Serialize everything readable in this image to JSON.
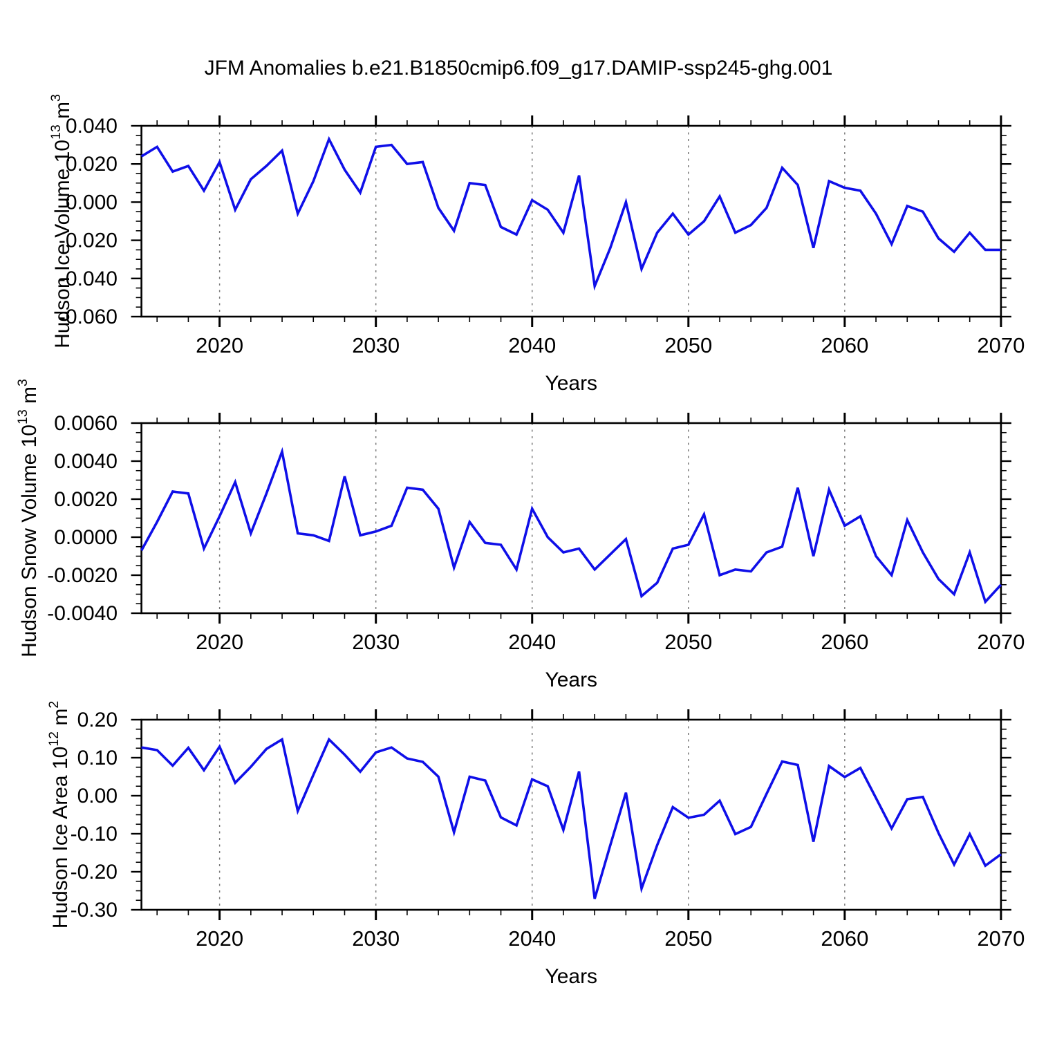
{
  "title": "JFM Anomalies b.e21.B1850cmip6.f09_g17.DAMIP-ssp245-ghg.001",
  "colors": {
    "line": "#0f0fe8",
    "gridline": "#7a7a7a",
    "axis": "#000000",
    "background": "#ffffff"
  },
  "chart_data": [
    {
      "type": "line",
      "id": "hudson-ice-volume",
      "ylabel_text": "Hudson Ice Volume 10^13 m^3",
      "ylabel_parts": [
        {
          "t": "Hudson Ice Volume 10"
        },
        {
          "s": "13"
        },
        {
          "t": " m"
        },
        {
          "s": "3"
        }
      ],
      "xlabel": "Years",
      "x_start": 2015,
      "x_end": 2070,
      "ylim": [
        -0.06,
        0.04
      ],
      "y_major_step": 0.02,
      "y_minor_step": 0.005,
      "y_decimals": 3,
      "x_minor_step": 2,
      "x_tick_labels": [
        "2020",
        "2030",
        "2040",
        "2050",
        "2060",
        "2070"
      ],
      "gridlines_x": [
        2020,
        2030,
        2040,
        2050,
        2060
      ],
      "grid": "vertical-dashed-only",
      "values": [
        0.024,
        0.029,
        0.016,
        0.019,
        0.006,
        0.021,
        -0.004,
        0.012,
        0.019,
        0.027,
        -0.006,
        0.011,
        0.033,
        0.017,
        0.005,
        0.029,
        0.03,
        0.02,
        0.021,
        -0.003,
        -0.015,
        0.01,
        0.009,
        -0.013,
        -0.017,
        0.001,
        -0.004,
        -0.016,
        0.014,
        -0.044,
        -0.024,
        0.0,
        -0.035,
        -0.016,
        -0.006,
        -0.017,
        -0.01,
        0.003,
        -0.016,
        -0.012,
        -0.003,
        0.018,
        0.009,
        -0.024,
        0.011,
        0.0075,
        0.006,
        -0.006,
        -0.022,
        -0.002,
        -0.005,
        -0.019,
        -0.026,
        -0.016,
        -0.025,
        -0.025
      ]
    },
    {
      "type": "line",
      "id": "hudson-snow-volume",
      "ylabel_text": "Hudson Snow Volume 10^13 m^3",
      "ylabel_parts": [
        {
          "t": "Hudson Snow Volume 10"
        },
        {
          "s": "13"
        },
        {
          "t": " m"
        },
        {
          "s": "3"
        }
      ],
      "xlabel": "Years",
      "x_start": 2015,
      "x_end": 2070,
      "ylim": [
        -0.004,
        0.006
      ],
      "y_major_step": 0.002,
      "y_minor_step": 0.0005,
      "y_decimals": 4,
      "x_minor_step": 2,
      "x_tick_labels": [
        "2020",
        "2030",
        "2040",
        "2050",
        "2060",
        "2070"
      ],
      "gridlines_x": [
        2020,
        2030,
        2040,
        2050,
        2060
      ],
      "grid": "vertical-dashed-only",
      "values": [
        -0.0007,
        0.0008,
        0.0024,
        0.0023,
        -0.0006,
        0.0011,
        0.0029,
        0.0002,
        0.0023,
        0.0045,
        0.0002,
        0.0001,
        -0.0002,
        0.0032,
        0.0001,
        0.0003,
        0.0006,
        0.0026,
        0.0025,
        0.0015,
        -0.0016,
        0.0008,
        -0.0003,
        -0.0004,
        -0.0017,
        0.0015,
        0.0,
        -0.0008,
        -0.0006,
        -0.0017,
        -0.0009,
        -0.0001,
        -0.0031,
        -0.0024,
        -0.0006,
        -0.0004,
        0.0012,
        -0.002,
        -0.0017,
        -0.0018,
        -0.0008,
        -0.0005,
        0.0026,
        -0.001,
        0.0025,
        0.0006,
        0.0011,
        -0.001,
        -0.002,
        0.0009,
        -0.0008,
        -0.0022,
        -0.003,
        -0.0008,
        -0.0034,
        -0.0025
      ]
    },
    {
      "type": "line",
      "id": "hudson-ice-area",
      "ylabel_text": "Hudson Ice Area 10^12 m^2",
      "ylabel_parts": [
        {
          "t": "Hudson Ice Area 10"
        },
        {
          "s": "12"
        },
        {
          "t": " m"
        },
        {
          "s": "2"
        }
      ],
      "xlabel": "Years",
      "x_start": 2015,
      "x_end": 2070,
      "ylim": [
        -0.3,
        0.2
      ],
      "y_major_step": 0.1,
      "y_minor_step": 0.025,
      "y_decimals": 2,
      "x_minor_step": 2,
      "x_tick_labels": [
        "2020",
        "2030",
        "2040",
        "2050",
        "2060",
        "2070"
      ],
      "gridlines_x": [
        2020,
        2030,
        2040,
        2050,
        2060
      ],
      "grid": "vertical-dashed-only",
      "values": [
        0.127,
        0.12,
        0.079,
        0.126,
        0.067,
        0.129,
        0.034,
        0.076,
        0.123,
        0.148,
        -0.04,
        0.055,
        0.148,
        0.108,
        0.063,
        0.114,
        0.127,
        0.098,
        0.089,
        0.05,
        -0.096,
        0.05,
        0.04,
        -0.057,
        -0.078,
        0.043,
        0.025,
        -0.09,
        0.064,
        -0.271,
        -0.13,
        0.008,
        -0.244,
        -0.13,
        -0.03,
        -0.058,
        -0.05,
        -0.013,
        -0.101,
        -0.082,
        0.005,
        0.09,
        0.081,
        -0.121,
        0.078,
        0.049,
        0.073,
        -0.006,
        -0.086,
        -0.009,
        -0.003,
        -0.098,
        -0.181,
        -0.101,
        -0.184,
        -0.154
      ]
    }
  ]
}
